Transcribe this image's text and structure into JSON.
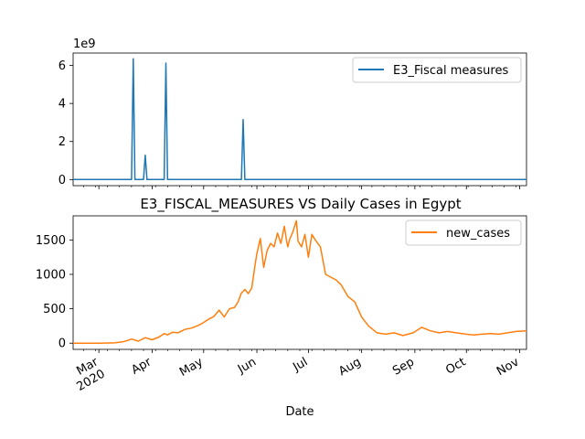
{
  "title": "E3_FISCAL_MEASURES VS Daily Cases in Egypt",
  "xlabel": "Date",
  "colors": {
    "series1": "#1f77b4",
    "series2": "#ff7f0e",
    "axis": "#000000"
  },
  "chart_data": [
    {
      "type": "line",
      "ylabel": "",
      "ylim": [
        -320000000.0,
        6650000000.0
      ],
      "y_ticks": [
        0,
        2,
        4,
        6
      ],
      "y_tick_labels": [
        "0",
        "2",
        "4",
        "6"
      ],
      "y_scale_label": "1e9",
      "legend_position": "top-right",
      "series": [
        {
          "name": "E3_Fiscal measures",
          "x": [
            "2020-02-15",
            "2020-03-20",
            "2020-03-21",
            "2020-03-22",
            "2020-03-27",
            "2020-03-28",
            "2020-03-29",
            "2020-04-08",
            "2020-04-09",
            "2020-04-10",
            "2020-05-23",
            "2020-05-24",
            "2020-05-25",
            "2020-11-05"
          ],
          "values": [
            0,
            0,
            6350000000.0,
            0,
            0,
            1280000000.0,
            0,
            0,
            6120000000.0,
            0,
            0,
            3150000000.0,
            0,
            0
          ]
        }
      ]
    },
    {
      "type": "line",
      "ylabel": "",
      "ylim": [
        -90,
        1850
      ],
      "y_ticks": [
        0,
        500,
        1000,
        1500
      ],
      "y_tick_labels": [
        "0",
        "500",
        "1000",
        "1500"
      ],
      "legend_position": "top-right",
      "x_ticks": [
        "2020-03-01",
        "2020-04-01",
        "2020-05-01",
        "2020-06-01",
        "2020-07-01",
        "2020-08-01",
        "2020-09-01",
        "2020-10-01",
        "2020-11-01"
      ],
      "x_tick_labels": [
        [
          "Mar",
          "2020"
        ],
        [
          "Apr"
        ],
        [
          "May"
        ],
        [
          "Jun"
        ],
        [
          "Jul"
        ],
        [
          "Aug"
        ],
        [
          "Sep"
        ],
        [
          "Oct"
        ],
        [
          "Nov"
        ]
      ],
      "x_range": [
        "2020-02-15",
        "2020-11-05"
      ],
      "series": [
        {
          "name": "new_cases",
          "x": [
            "2020-02-15",
            "2020-03-01",
            "2020-03-10",
            "2020-03-15",
            "2020-03-18",
            "2020-03-20",
            "2020-03-24",
            "2020-03-28",
            "2020-04-01",
            "2020-04-05",
            "2020-04-08",
            "2020-04-10",
            "2020-04-13",
            "2020-04-16",
            "2020-04-20",
            "2020-04-24",
            "2020-04-28",
            "2020-05-01",
            "2020-05-04",
            "2020-05-07",
            "2020-05-10",
            "2020-05-13",
            "2020-05-16",
            "2020-05-19",
            "2020-05-21",
            "2020-05-23",
            "2020-05-25",
            "2020-05-27",
            "2020-05-29",
            "2020-05-31",
            "2020-06-01",
            "2020-06-03",
            "2020-06-05",
            "2020-06-07",
            "2020-06-09",
            "2020-06-11",
            "2020-06-13",
            "2020-06-15",
            "2020-06-17",
            "2020-06-18",
            "2020-06-19",
            "2020-06-20",
            "2020-06-22",
            "2020-06-24",
            "2020-06-25",
            "2020-06-27",
            "2020-06-29",
            "2020-07-01",
            "2020-07-03",
            "2020-07-05",
            "2020-07-08",
            "2020-07-11",
            "2020-07-14",
            "2020-07-17",
            "2020-07-20",
            "2020-07-24",
            "2020-07-28",
            "2020-08-01",
            "2020-08-05",
            "2020-08-10",
            "2020-08-15",
            "2020-08-20",
            "2020-08-25",
            "2020-08-31",
            "2020-09-05",
            "2020-09-10",
            "2020-09-15",
            "2020-09-20",
            "2020-09-25",
            "2020-10-01",
            "2020-10-05",
            "2020-10-10",
            "2020-10-15",
            "2020-10-20",
            "2020-10-25",
            "2020-10-30",
            "2020-11-05"
          ],
          "values": [
            0,
            0,
            5,
            20,
            40,
            60,
            30,
            80,
            50,
            90,
            140,
            120,
            160,
            150,
            200,
            220,
            260,
            300,
            350,
            390,
            480,
            380,
            500,
            520,
            600,
            730,
            780,
            720,
            800,
            1150,
            1300,
            1520,
            1100,
            1350,
            1450,
            1400,
            1600,
            1450,
            1700,
            1530,
            1400,
            1500,
            1620,
            1780,
            1480,
            1400,
            1580,
            1250,
            1580,
            1500,
            1400,
            1000,
            960,
            920,
            850,
            680,
            600,
            380,
            250,
            150,
            130,
            150,
            110,
            150,
            230,
            180,
            150,
            170,
            150,
            130,
            120,
            130,
            140,
            130,
            150,
            170,
            180
          ]
        }
      ]
    }
  ]
}
